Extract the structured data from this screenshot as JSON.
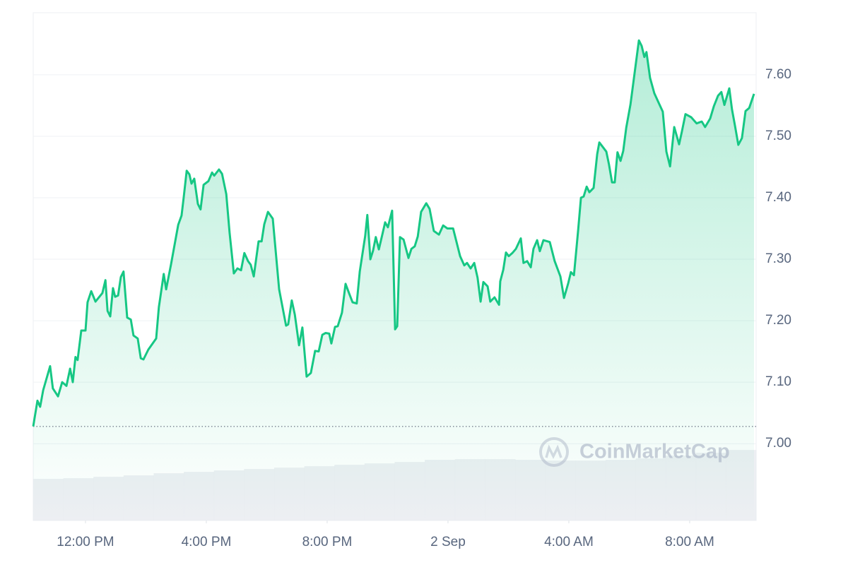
{
  "chart_data": {
    "type": "area",
    "watermark": "CoinMarketCap",
    "color": "#16c784",
    "baseline": 7.028,
    "grid": true,
    "xlim": [
      10.27,
      34.2
    ],
    "ylim": [
      6.875,
      7.701
    ],
    "xticks": [
      {
        "value": 12,
        "label": "12:00 PM"
      },
      {
        "value": 16,
        "label": "4:00 PM"
      },
      {
        "value": 20,
        "label": "8:00 PM"
      },
      {
        "value": 24,
        "label": "2 Sep"
      },
      {
        "value": 28,
        "label": "4:00 AM"
      },
      {
        "value": 32,
        "label": "8:00 AM"
      }
    ],
    "yticks": [
      {
        "value": 7.0,
        "label": "7.00"
      },
      {
        "value": 7.1,
        "label": "7.10"
      },
      {
        "value": 7.2,
        "label": "7.20"
      },
      {
        "value": 7.3,
        "label": "7.30"
      },
      {
        "value": 7.4,
        "label": "7.40"
      },
      {
        "value": 7.5,
        "label": "7.50"
      },
      {
        "value": 7.6,
        "label": "7.60"
      }
    ],
    "x": [
      10.27,
      10.41,
      10.5,
      10.6,
      10.83,
      10.92,
      11.09,
      11.23,
      11.37,
      11.49,
      11.58,
      11.67,
      11.74,
      11.86,
      12.0,
      12.07,
      12.19,
      12.33,
      12.56,
      12.66,
      12.73,
      12.82,
      12.91,
      12.98,
      13.08,
      13.17,
      13.26,
      13.38,
      13.5,
      13.59,
      13.73,
      13.83,
      13.92,
      14.08,
      14.34,
      14.43,
      14.59,
      14.67,
      14.83,
      15.07,
      15.18,
      15.25,
      15.35,
      15.44,
      15.51,
      15.6,
      15.72,
      15.81,
      15.91,
      16.07,
      16.19,
      16.26,
      16.42,
      16.52,
      16.66,
      16.77,
      16.91,
      17.03,
      17.15,
      17.26,
      17.38,
      17.47,
      17.57,
      17.73,
      17.83,
      17.92,
      18.04,
      18.2,
      18.41,
      18.64,
      18.71,
      18.83,
      18.93,
      19.07,
      19.18,
      19.32,
      19.46,
      19.6,
      19.72,
      19.84,
      19.95,
      20.07,
      20.14,
      20.26,
      20.35,
      20.49,
      20.61,
      20.73,
      20.84,
      20.98,
      21.08,
      21.26,
      21.33,
      21.43,
      21.52,
      21.61,
      21.71,
      21.83,
      21.92,
      22.01,
      22.15,
      22.25,
      22.32,
      22.41,
      22.53,
      22.69,
      22.79,
      22.9,
      23.0,
      23.11,
      23.28,
      23.39,
      23.53,
      23.7,
      23.84,
      23.98,
      24.17,
      24.4,
      24.54,
      24.63,
      24.75,
      24.87,
      24.98,
      25.08,
      25.17,
      25.31,
      25.4,
      25.54,
      25.69,
      25.73,
      25.83,
      25.92,
      26.01,
      26.13,
      26.25,
      26.41,
      26.5,
      26.62,
      26.74,
      26.83,
      26.95,
      27.04,
      27.16,
      27.37,
      27.53,
      27.72,
      27.84,
      27.98,
      28.07,
      28.17,
      28.31,
      28.4,
      28.49,
      28.59,
      28.68,
      28.82,
      28.94,
      29.01,
      29.12,
      29.24,
      29.33,
      29.43,
      29.52,
      29.61,
      29.71,
      29.8,
      29.9,
      30.04,
      30.15,
      30.32,
      30.41,
      30.5,
      30.57,
      30.69,
      30.83,
      30.97,
      31.11,
      31.23,
      31.35,
      31.49,
      31.65,
      31.74,
      31.86,
      32.05,
      32.23,
      32.4,
      32.51,
      32.68,
      32.8,
      32.94,
      33.05,
      33.15,
      33.31,
      33.4,
      33.5,
      33.61,
      33.73,
      33.85,
      33.97,
      34.13
    ],
    "values": [
      7.028,
      7.07,
      7.06,
      7.087,
      7.126,
      7.09,
      7.077,
      7.1,
      7.094,
      7.122,
      7.1,
      7.141,
      7.136,
      7.184,
      7.184,
      7.23,
      7.248,
      7.231,
      7.245,
      7.266,
      7.216,
      7.207,
      7.253,
      7.239,
      7.241,
      7.271,
      7.28,
      7.205,
      7.202,
      7.176,
      7.171,
      7.139,
      7.137,
      7.153,
      7.171,
      7.222,
      7.276,
      7.251,
      7.291,
      7.356,
      7.371,
      7.4,
      7.444,
      7.438,
      7.423,
      7.431,
      7.39,
      7.381,
      7.421,
      7.427,
      7.441,
      7.436,
      7.446,
      7.439,
      7.406,
      7.343,
      7.277,
      7.285,
      7.282,
      7.31,
      7.297,
      7.291,
      7.272,
      7.329,
      7.329,
      7.357,
      7.377,
      7.366,
      7.251,
      7.192,
      7.194,
      7.233,
      7.21,
      7.16,
      7.189,
      7.109,
      7.115,
      7.151,
      7.15,
      7.177,
      7.18,
      7.179,
      7.163,
      7.19,
      7.191,
      7.213,
      7.26,
      7.244,
      7.23,
      7.228,
      7.28,
      7.338,
      7.372,
      7.3,
      7.314,
      7.336,
      7.316,
      7.341,
      7.36,
      7.352,
      7.379,
      7.186,
      7.191,
      7.336,
      7.332,
      7.302,
      7.317,
      7.321,
      7.337,
      7.377,
      7.391,
      7.382,
      7.346,
      7.34,
      7.355,
      7.35,
      7.35,
      7.305,
      7.29,
      7.294,
      7.285,
      7.294,
      7.27,
      7.231,
      7.263,
      7.256,
      7.231,
      7.238,
      7.226,
      7.264,
      7.283,
      7.311,
      7.305,
      7.31,
      7.317,
      7.334,
      7.294,
      7.297,
      7.287,
      7.317,
      7.331,
      7.313,
      7.331,
      7.328,
      7.297,
      7.272,
      7.237,
      7.261,
      7.279,
      7.274,
      7.348,
      7.4,
      7.402,
      7.418,
      7.409,
      7.416,
      7.471,
      7.49,
      7.483,
      7.475,
      7.454,
      7.425,
      7.425,
      7.474,
      7.46,
      7.476,
      7.514,
      7.552,
      7.593,
      7.656,
      7.647,
      7.629,
      7.637,
      7.595,
      7.57,
      7.555,
      7.54,
      7.475,
      7.451,
      7.515,
      7.487,
      7.507,
      7.536,
      7.531,
      7.521,
      7.524,
      7.515,
      7.529,
      7.549,
      7.566,
      7.572,
      7.551,
      7.578,
      7.544,
      7.517,
      7.486,
      7.497,
      7.541,
      7.546,
      7.569
    ],
    "volume": {
      "lim": [
        0,
        720
      ],
      "values": [
        59,
        60,
        62,
        64,
        67,
        69,
        71,
        73,
        75,
        77,
        79,
        81,
        83,
        86,
        87,
        87,
        86,
        85,
        85,
        86,
        88,
        92,
        96,
        100
      ]
    }
  }
}
